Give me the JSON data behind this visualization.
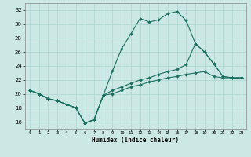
{
  "xlabel": "Humidex (Indice chaleur)",
  "bg_color": "#cce8e4",
  "grid_color": "#aad4d0",
  "line_color": "#1a7060",
  "xlim": [
    -0.5,
    23.5
  ],
  "ylim": [
    15.0,
    33.0
  ],
  "ytick_vals": [
    16,
    18,
    20,
    22,
    24,
    26,
    28,
    30,
    32
  ],
  "line1_x": [
    0,
    1,
    2,
    3,
    4,
    5,
    6,
    7,
    8,
    9,
    10,
    11,
    12,
    13,
    14,
    15,
    16,
    17,
    18,
    19,
    20,
    21,
    22,
    23
  ],
  "line1_y": [
    20.5,
    20.0,
    19.3,
    19.0,
    18.5,
    18.0,
    15.8,
    16.3,
    19.8,
    23.3,
    26.5,
    28.6,
    30.8,
    30.3,
    30.6,
    31.5,
    31.8,
    30.5,
    27.2,
    26.0,
    24.3,
    22.5,
    22.3,
    22.3
  ],
  "line2_x": [
    0,
    1,
    2,
    3,
    4,
    5,
    6,
    7,
    8,
    9,
    10,
    11,
    12,
    13,
    14,
    15,
    16,
    17,
    18,
    19,
    20,
    21,
    22,
    23
  ],
  "line2_y": [
    20.5,
    20.0,
    19.3,
    19.0,
    18.5,
    18.0,
    15.8,
    16.3,
    19.8,
    20.5,
    21.0,
    21.5,
    22.0,
    22.3,
    22.8,
    23.2,
    23.5,
    24.2,
    27.2,
    26.0,
    24.3,
    22.5,
    22.3,
    22.3
  ],
  "line3_x": [
    0,
    1,
    2,
    3,
    4,
    5,
    6,
    7,
    8,
    9,
    10,
    11,
    12,
    13,
    14,
    15,
    16,
    17,
    18,
    19,
    20,
    21,
    22,
    23
  ],
  "line3_y": [
    20.5,
    20.0,
    19.3,
    19.0,
    18.5,
    18.0,
    15.8,
    16.3,
    19.8,
    20.0,
    20.5,
    21.0,
    21.3,
    21.7,
    22.0,
    22.3,
    22.5,
    22.8,
    23.0,
    23.2,
    22.5,
    22.3,
    22.3,
    22.3
  ]
}
